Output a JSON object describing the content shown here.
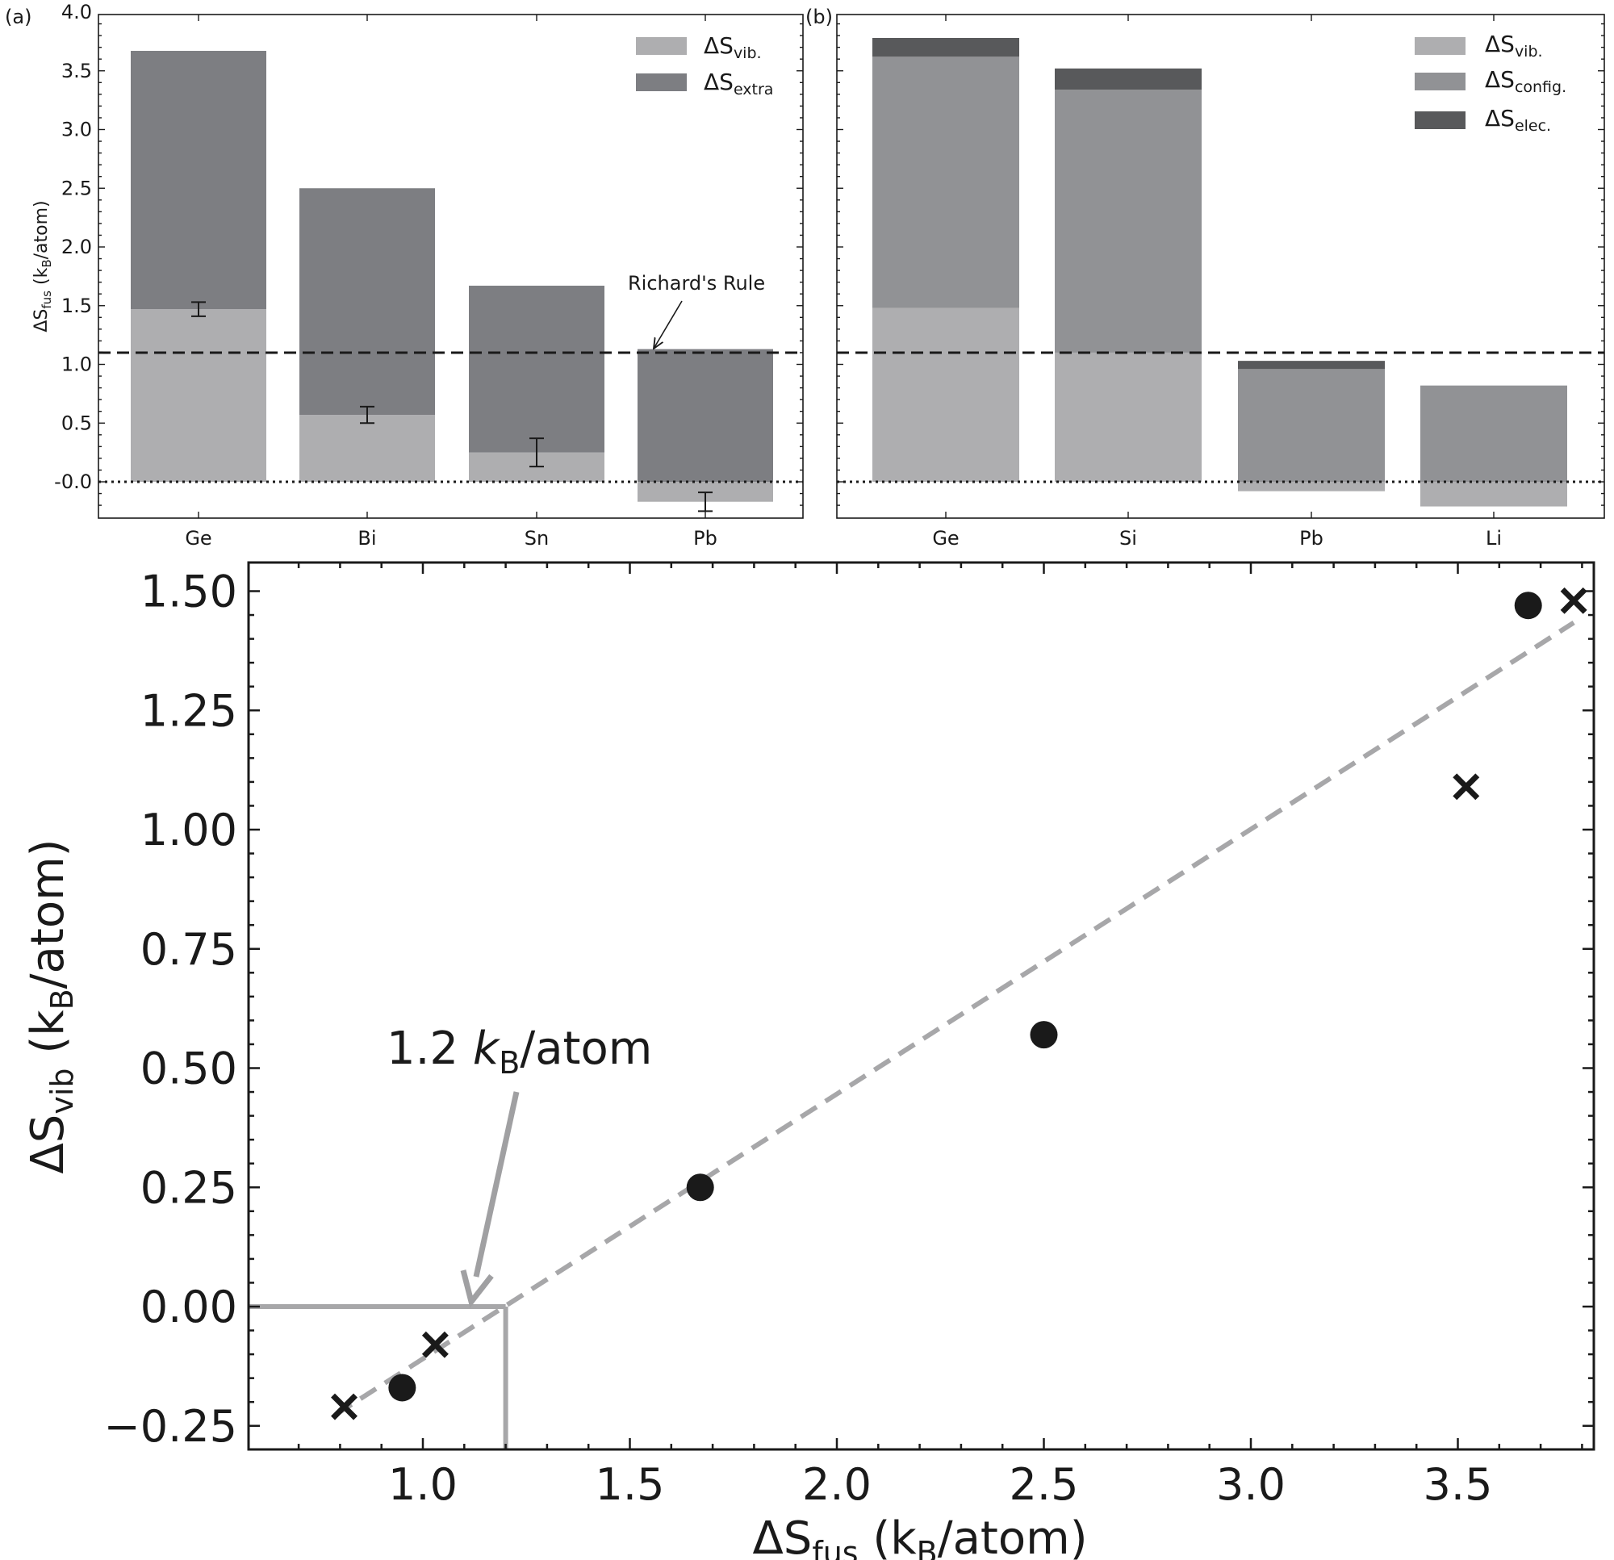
{
  "chart_data": [
    {
      "id": "a",
      "panel_label": "(a)",
      "type": "bar",
      "stacked": true,
      "categories": [
        "Ge",
        "Bi",
        "Sn",
        "Pb"
      ],
      "series": [
        {
          "name": "ΔSvib.",
          "name_main": "ΔS",
          "name_sub": "vib.",
          "color": "#aeaeb0",
          "values": [
            1.47,
            0.57,
            0.25,
            -0.17
          ]
        },
        {
          "name": "ΔSextra",
          "name_main": "ΔS",
          "name_sub": "extra",
          "color": "#7d7e82",
          "values": [
            2.2,
            1.93,
            1.42,
            1.13
          ]
        }
      ],
      "error_bars": {
        "center": [
          1.47,
          0.57,
          0.25,
          -0.17
        ],
        "err": [
          0.06,
          0.07,
          0.12,
          0.08
        ]
      },
      "ylabel_main": "ΔS",
      "ylabel_sub": "fus",
      "ylabel_rest_a": " (k",
      "ylabel_rest_sub": "B",
      "ylabel_rest_b": "/atom)",
      "ylim": [
        -0.3,
        4.0
      ],
      "yticks": [
        "-0.0",
        "0.5",
        "1.0",
        "1.5",
        "2.0",
        "2.5",
        "3.0",
        "3.5",
        "4.0"
      ],
      "ytick_values": [
        0.0,
        0.5,
        1.0,
        1.5,
        2.0,
        2.5,
        3.0,
        3.5,
        4.0
      ],
      "reference_line": {
        "value": 1.1,
        "label": "Richard's Rule"
      },
      "legend_position": "top-right"
    },
    {
      "id": "b",
      "panel_label": "(b)",
      "type": "bar",
      "stacked": true,
      "categories": [
        "Ge",
        "Si",
        "Pb",
        "Li"
      ],
      "series": [
        {
          "name": "ΔSvib.",
          "name_main": "ΔS",
          "name_sub": "vib.",
          "color": "#aeaeb0",
          "values": [
            1.48,
            1.1,
            -0.08,
            -0.21
          ]
        },
        {
          "name": "ΔSconfig.",
          "name_main": "ΔS",
          "name_sub": "config.",
          "color": "#919295",
          "values": [
            2.14,
            2.24,
            0.96,
            0.82
          ]
        },
        {
          "name": "ΔSelec.",
          "name_main": "ΔS",
          "name_sub": "elec.",
          "color": "#58595b",
          "values": [
            0.16,
            0.18,
            0.07,
            0.0
          ]
        }
      ],
      "ylim": [
        -0.3,
        4.0
      ],
      "reference_line": {
        "value": 1.1
      },
      "legend_position": "top-right"
    },
    {
      "id": "c",
      "type": "scatter",
      "series": [
        {
          "name": "circles",
          "marker": "circle",
          "x": [
            3.67,
            2.5,
            1.67,
            0.95
          ],
          "y": [
            1.47,
            0.57,
            0.25,
            -0.17
          ]
        },
        {
          "name": "crosses",
          "marker": "x",
          "x": [
            3.78,
            3.52,
            1.03,
            0.81
          ],
          "y": [
            1.48,
            1.09,
            -0.08,
            -0.21
          ]
        }
      ],
      "fit_line": {
        "x": [
          0.79,
          3.78
        ],
        "y": [
          -0.226,
          1.434
        ]
      },
      "xlabel_main": "ΔS",
      "xlabel_sub": "fus",
      "xlabel_rest_a": " (k",
      "xlabel_rest_sub": "B",
      "xlabel_rest_b": "/atom)",
      "ylabel_main": "ΔS",
      "ylabel_sub": "vib",
      "ylabel_rest_a": " (k",
      "ylabel_rest_sub": "B",
      "ylabel_rest_b": "/atom)",
      "xlim": [
        0.66,
        3.93
      ],
      "ylim": [
        -0.3,
        1.54
      ],
      "xticks": [
        "1.0",
        "1.5",
        "2.0",
        "2.5",
        "3.0",
        "3.5"
      ],
      "xtick_values": [
        1.0,
        1.5,
        2.0,
        2.5,
        3.0,
        3.5
      ],
      "yticks": [
        "−0.25",
        "0.00",
        "0.25",
        "0.50",
        "0.75",
        "1.00",
        "1.25",
        "1.50"
      ],
      "ytick_values": [
        -0.25,
        0.0,
        0.25,
        0.5,
        0.75,
        1.0,
        1.25,
        1.5
      ],
      "annotation": {
        "value_text": "1.2 ",
        "k_text": "k",
        "sub_text": "B",
        "unit_text": "/atom",
        "x": 1.2,
        "y": 0.0
      }
    }
  ]
}
